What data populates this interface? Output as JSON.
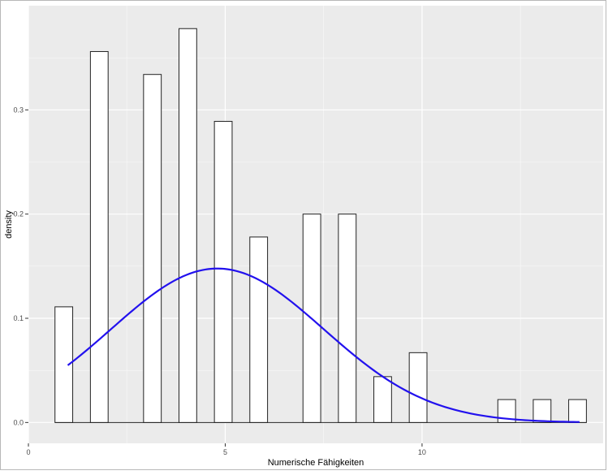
{
  "chart_data": {
    "type": "bar",
    "xlabel": "Numerische Fähigkeiten",
    "ylabel": "density",
    "xlim": [
      0,
      14.6
    ],
    "ylim": [
      -0.02,
      0.4
    ],
    "x_ticks": [
      0,
      5,
      10
    ],
    "x_tick_labels": [
      "0",
      "5",
      "10"
    ],
    "y_ticks": [
      0,
      0.1,
      0.2,
      0.3
    ],
    "y_tick_labels": [
      "0.0",
      "0.1",
      "0.2",
      "0.3"
    ],
    "grid": true,
    "bin_width": 0.45,
    "bars": [
      {
        "x": 0.9,
        "y": 0.111
      },
      {
        "x": 1.8,
        "y": 0.356
      },
      {
        "x": 3.15,
        "y": 0.334
      },
      {
        "x": 4.05,
        "y": 0.378
      },
      {
        "x": 4.95,
        "y": 0.289
      },
      {
        "x": 5.85,
        "y": 0.178
      },
      {
        "x": 7.2,
        "y": 0.2
      },
      {
        "x": 8.1,
        "y": 0.2
      },
      {
        "x": 9.0,
        "y": 0.044
      },
      {
        "x": 9.9,
        "y": 0.067
      },
      {
        "x": 12.15,
        "y": 0.022
      },
      {
        "x": 13.05,
        "y": 0.022
      },
      {
        "x": 13.95,
        "y": 0.022
      }
    ],
    "baseline_segments": [
      [
        0.675,
        14.175
      ]
    ],
    "density_curve": {
      "type": "line",
      "color": "#2211ee",
      "mean": 4.8,
      "sd": 2.7,
      "x_range": [
        1.0,
        14.0
      ]
    },
    "colors": {
      "panel_bg": "#ebebeb",
      "grid_major": "#ffffff",
      "bar_fill": "#ffffff",
      "bar_stroke": "#222222",
      "tick_text": "#4d4d4d"
    }
  }
}
